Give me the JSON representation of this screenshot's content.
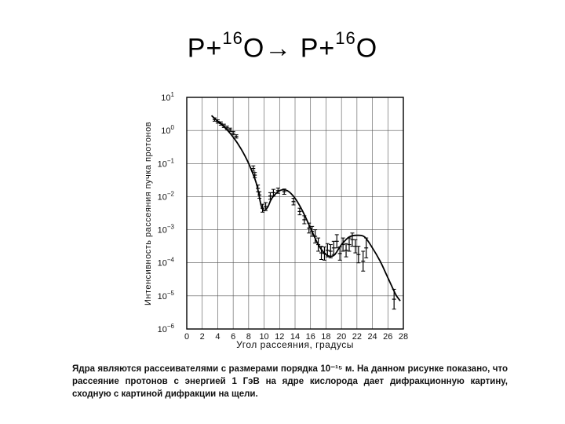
{
  "title": {
    "p1": "P+",
    "sup1": "16",
    "o1": "O",
    "arrow": "→",
    "p2": " P+",
    "sup2": "16",
    "o2": "O"
  },
  "caption": "Ядра являются рассеивателями с размерами порядка 10⁻¹⁵ м. На данном рисунке показано, что рассеяние протонов с энергией 1 ГэВ на ядре кислорода дает дифракционную картину, сходную с картиной дифракции на щели.",
  "chart_data": {
    "type": "scatter",
    "xlabel": "Угол рассеяния, градусы",
    "ylabel": "Интенсивность рассеяния пучка протонов",
    "xlim": [
      0,
      28
    ],
    "ylim_log10": [
      -6,
      1
    ],
    "y_scale": "log",
    "grid": true,
    "x_ticks": [
      "0",
      "2",
      "4",
      "6",
      "8",
      "10",
      "12",
      "14",
      "16",
      "18",
      "20",
      "22",
      "24",
      "26",
      "28"
    ],
    "y_ticks": [
      {
        "base": "10",
        "exp": "1",
        "value": 1
      },
      {
        "base": "10",
        "exp": "0",
        "value": 0
      },
      {
        "base": "10",
        "exp": "−1",
        "value": -1
      },
      {
        "base": "10",
        "exp": "−2",
        "value": -2
      },
      {
        "base": "10",
        "exp": "−3",
        "value": -3
      },
      {
        "base": "10",
        "exp": "−4",
        "value": -4
      },
      {
        "base": "10",
        "exp": "−5",
        "value": -5
      },
      {
        "base": "10",
        "exp": "−6",
        "value": -6
      }
    ],
    "curve_log10": [
      [
        3.2,
        0.45
      ],
      [
        4,
        0.28
      ],
      [
        5,
        0.07
      ],
      [
        6,
        -0.2
      ],
      [
        7,
        -0.55
      ],
      [
        8,
        -1.0
      ],
      [
        9,
        -1.6
      ],
      [
        9.6,
        -2.25
      ],
      [
        10,
        -2.42
      ],
      [
        10.5,
        -2.3
      ],
      [
        11,
        -2.05
      ],
      [
        12,
        -1.82
      ],
      [
        13,
        -1.82
      ],
      [
        14,
        -2.05
      ],
      [
        15,
        -2.45
      ],
      [
        16,
        -2.95
      ],
      [
        17,
        -3.45
      ],
      [
        18,
        -3.75
      ],
      [
        19,
        -3.78
      ],
      [
        20,
        -3.45
      ],
      [
        21,
        -3.22
      ],
      [
        22,
        -3.17
      ],
      [
        23,
        -3.22
      ],
      [
        24,
        -3.55
      ],
      [
        25,
        -3.95
      ],
      [
        26,
        -4.45
      ],
      [
        27,
        -4.95
      ],
      [
        27.6,
        -5.15
      ]
    ],
    "points_log10": [
      {
        "x": 3.6,
        "y": 0.33,
        "e": 0.05
      },
      {
        "x": 4.0,
        "y": 0.27,
        "e": 0.05
      },
      {
        "x": 4.4,
        "y": 0.21,
        "e": 0.05
      },
      {
        "x": 4.8,
        "y": 0.14,
        "e": 0.05
      },
      {
        "x": 5.2,
        "y": 0.08,
        "e": 0.05
      },
      {
        "x": 5.6,
        "y": 0.02,
        "e": 0.05
      },
      {
        "x": 6.0,
        "y": -0.08,
        "e": 0.05
      },
      {
        "x": 6.4,
        "y": -0.18,
        "e": 0.05
      },
      {
        "x": 8.6,
        "y": -1.15,
        "e": 0.08
      },
      {
        "x": 8.8,
        "y": -1.35,
        "e": 0.08
      },
      {
        "x": 9.2,
        "y": -1.75,
        "e": 0.1
      },
      {
        "x": 9.4,
        "y": -1.95,
        "e": 0.1
      },
      {
        "x": 9.8,
        "y": -2.35,
        "e": 0.12
      },
      {
        "x": 10.2,
        "y": -2.3,
        "e": 0.12
      },
      {
        "x": 10.8,
        "y": -1.98,
        "e": 0.1
      },
      {
        "x": 11.2,
        "y": -1.88,
        "e": 0.1
      },
      {
        "x": 11.8,
        "y": -1.82,
        "e": 0.08
      },
      {
        "x": 12.6,
        "y": -1.85,
        "e": 0.08
      },
      {
        "x": 13.8,
        "y": -2.15,
        "e": 0.1
      },
      {
        "x": 14.6,
        "y": -2.45,
        "e": 0.1
      },
      {
        "x": 15.2,
        "y": -2.7,
        "e": 0.12
      },
      {
        "x": 15.8,
        "y": -2.95,
        "e": 0.15
      },
      {
        "x": 16.2,
        "y": -3.05,
        "e": 0.15
      },
      {
        "x": 16.6,
        "y": -3.2,
        "e": 0.2
      },
      {
        "x": 17.0,
        "y": -3.45,
        "e": 0.2
      },
      {
        "x": 17.4,
        "y": -3.7,
        "e": 0.2
      },
      {
        "x": 17.8,
        "y": -3.72,
        "e": 0.2
      },
      {
        "x": 18.2,
        "y": -3.62,
        "e": 0.2
      },
      {
        "x": 18.6,
        "y": -3.65,
        "e": 0.2
      },
      {
        "x": 19.0,
        "y": -3.55,
        "e": 0.2
      },
      {
        "x": 19.4,
        "y": -3.35,
        "e": 0.2
      },
      {
        "x": 19.8,
        "y": -3.72,
        "e": 0.2
      },
      {
        "x": 20.2,
        "y": -3.45,
        "e": 0.2
      },
      {
        "x": 20.6,
        "y": -3.62,
        "e": 0.2
      },
      {
        "x": 21.0,
        "y": -3.45,
        "e": 0.2
      },
      {
        "x": 21.4,
        "y": -3.3,
        "e": 0.2
      },
      {
        "x": 21.8,
        "y": -3.5,
        "e": 0.2
      },
      {
        "x": 22.2,
        "y": -3.75,
        "e": 0.25
      },
      {
        "x": 22.8,
        "y": -3.95,
        "e": 0.3
      },
      {
        "x": 23.2,
        "y": -3.55,
        "e": 0.3
      },
      {
        "x": 26.8,
        "y": -5.1,
        "e": 0.3
      }
    ]
  }
}
